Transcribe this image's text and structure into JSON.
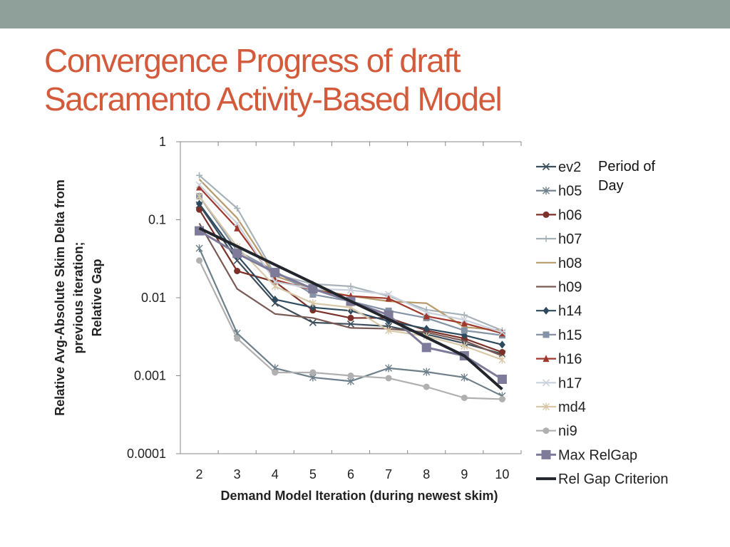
{
  "slide": {
    "title_line1": "Convergence Progress of draft",
    "title_line2": "Sacramento Activity-Based Model",
    "accent_color": "#d35b3c",
    "bar_color": "#8fa09a"
  },
  "note": {
    "line1": "Period of",
    "line2": "Day"
  },
  "chart_data": {
    "type": "line",
    "y_scale": "log",
    "ylim": [
      0.0001,
      1
    ],
    "yticks": [
      {
        "value": 1,
        "label": "1"
      },
      {
        "value": 0.1,
        "label": "0.1"
      },
      {
        "value": 0.01,
        "label": "0.01"
      },
      {
        "value": 0.001,
        "label": "0.001"
      },
      {
        "value": 0.0001,
        "label": "0.0001"
      }
    ],
    "x": [
      2,
      3,
      4,
      5,
      6,
      7,
      8,
      9,
      10
    ],
    "xlabel": "Demand Model Iteration (during newest skim)",
    "ylabel_lines": [
      "Relative Avg-Absolute Skim Delta from",
      "previous iteration;",
      "Relative Gap"
    ],
    "legend_position": "right",
    "series": [
      {
        "name": "ev2",
        "color": "#3d4f5c",
        "marker": "x",
        "values": [
          0.155,
          0.03,
          0.0085,
          0.0048,
          0.0046,
          0.0043,
          0.0034,
          0.0026,
          0.0019
        ]
      },
      {
        "name": "h05",
        "color": "#6d7f8a",
        "marker": "star",
        "values": [
          0.043,
          0.0035,
          0.00125,
          0.00095,
          0.00085,
          0.00125,
          0.00112,
          0.00095,
          0.00055
        ]
      },
      {
        "name": "h06",
        "color": "#7b3028",
        "marker": "circle",
        "values": [
          0.135,
          0.022,
          0.016,
          0.0069,
          0.0055,
          0.0055,
          0.0038,
          0.003,
          0.002
        ]
      },
      {
        "name": "h07",
        "color": "#a7b2b8",
        "marker": "plus",
        "values": [
          0.37,
          0.14,
          0.02,
          0.015,
          0.014,
          0.0105,
          0.007,
          0.006,
          0.0038
        ]
      },
      {
        "name": "h08",
        "color": "#b89a6b",
        "marker": "none",
        "values": [
          0.33,
          0.105,
          0.019,
          0.013,
          0.0105,
          0.009,
          0.0085,
          0.0042,
          0.0038
        ]
      },
      {
        "name": "h09",
        "color": "#7a5a55",
        "marker": "none",
        "values": [
          0.09,
          0.013,
          0.0062,
          0.0055,
          0.0041,
          0.004,
          0.0036,
          0.0028,
          0.0018
        ]
      },
      {
        "name": "h14",
        "color": "#2e4a5e",
        "marker": "diamond",
        "values": [
          0.16,
          0.035,
          0.0095,
          0.0075,
          0.0068,
          0.005,
          0.004,
          0.0033,
          0.0025
        ]
      },
      {
        "name": "h15",
        "color": "#8593a6",
        "marker": "square",
        "values": [
          0.2,
          0.04,
          0.022,
          0.011,
          0.009,
          0.0068,
          0.0055,
          0.0038,
          0.0033
        ]
      },
      {
        "name": "h16",
        "color": "#a0382d",
        "marker": "triangle",
        "values": [
          0.26,
          0.078,
          0.017,
          0.0125,
          0.0105,
          0.0098,
          0.0058,
          0.0047,
          0.0035
        ]
      },
      {
        "name": "h17",
        "color": "#c9d1dc",
        "marker": "x",
        "values": [
          0.28,
          0.09,
          0.016,
          0.013,
          0.0125,
          0.011,
          0.0065,
          0.0052,
          0.0036
        ]
      },
      {
        "name": "md4",
        "color": "#d8c8a8",
        "marker": "star",
        "values": [
          0.2,
          0.045,
          0.014,
          0.0085,
          0.0075,
          0.0038,
          0.0032,
          0.0024,
          0.0016
        ]
      },
      {
        "name": "ni9",
        "color": "#b0b0b0",
        "marker": "circle",
        "values": [
          0.03,
          0.003,
          0.0011,
          0.0011,
          0.001,
          0.00093,
          0.00072,
          0.00052,
          0.0005
        ]
      },
      {
        "name": "Max RelGap",
        "color": "#7e7b9a",
        "marker": "square",
        "values": [
          0.072,
          0.037,
          0.021,
          0.013,
          0.009,
          0.006,
          0.0023,
          0.0018,
          0.0009
        ]
      },
      {
        "name": "Rel Gap Criterion",
        "color": "#22262c",
        "marker": "none",
        "thick": true,
        "values": [
          0.078,
          0.0455,
          0.0265,
          0.0155,
          0.009,
          0.0053,
          0.0031,
          0.0018,
          0.00067
        ]
      }
    ]
  }
}
